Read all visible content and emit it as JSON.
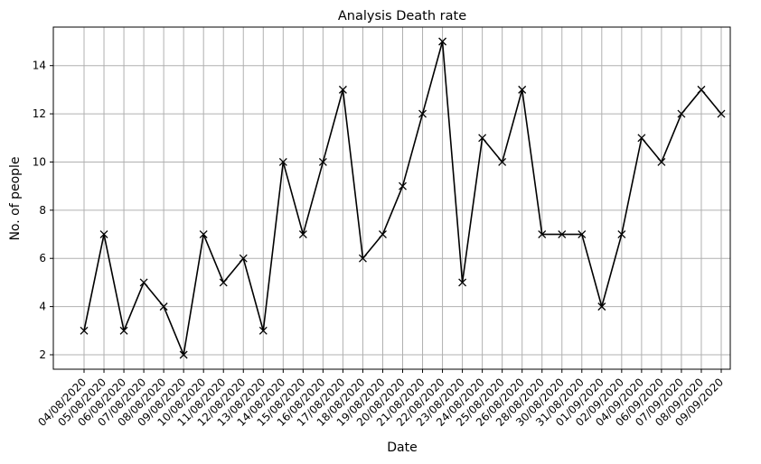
{
  "chart_data": {
    "type": "line",
    "title": "Analysis Death rate",
    "xlabel": "Date",
    "ylabel": "No. of people",
    "categories": [
      "04/08/2020",
      "05/08/2020",
      "06/08/2020",
      "07/08/2020",
      "08/08/2020",
      "09/08/2020",
      "10/08/2020",
      "11/08/2020",
      "12/08/2020",
      "13/08/2020",
      "14/08/2020",
      "15/08/2020",
      "16/08/2020",
      "17/08/2020",
      "18/08/2020",
      "19/08/2020",
      "20/08/2020",
      "21/08/2020",
      "22/08/2020",
      "23/08/2020",
      "24/08/2020",
      "25/08/2020",
      "26/08/2020",
      "28/08/2020",
      "30/08/2020",
      "31/08/2020",
      "01/09/2020",
      "02/09/2020",
      "04/09/2020",
      "06/09/2020",
      "07/09/2020",
      "08/09/2020",
      "09/09/2020"
    ],
    "series": [
      {
        "values": [
          3,
          7,
          3,
          5,
          4,
          2,
          7,
          5,
          6,
          3,
          10,
          7,
          10,
          13,
          6,
          7,
          9,
          12,
          15,
          5,
          11,
          10,
          13,
          7,
          7,
          7,
          4,
          7,
          11,
          10,
          12,
          13,
          12
        ]
      }
    ],
    "yticks": [
      2,
      4,
      6,
      8,
      10,
      12,
      14
    ],
    "ylim": [
      1.4,
      15.6
    ],
    "grid": true,
    "marker": "x",
    "line_color": "#000000",
    "grid_color": "#b0b0b0",
    "legend": "none"
  }
}
